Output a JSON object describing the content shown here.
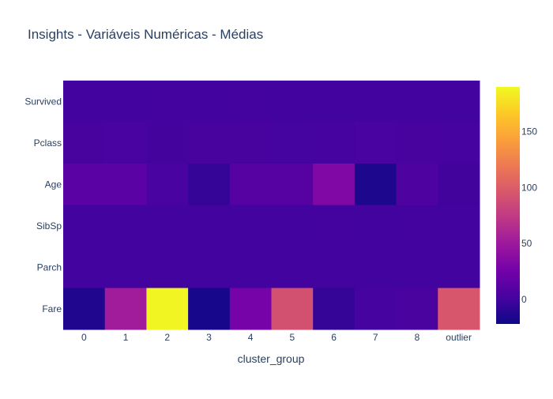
{
  "chart_data": {
    "type": "heatmap",
    "title": "Insights - Variáveis Numéricas - Médias",
    "xlabel": "cluster_group",
    "ylabel": "",
    "categories": [
      "0",
      "1",
      "2",
      "3",
      "4",
      "5",
      "6",
      "7",
      "8",
      "outlier"
    ],
    "rows": [
      "Survived",
      "Pclass",
      "Age",
      "SibSp",
      "Parch",
      "Fare"
    ],
    "values": [
      [
        0.2,
        0.1,
        0.6,
        0.5,
        0.6,
        0.5,
        0.3,
        0.3,
        0.3,
        0.4
      ],
      [
        2.5,
        3.0,
        1.0,
        2.5,
        2.8,
        1.2,
        2.3,
        3.0,
        2.6,
        1.6
      ],
      [
        12,
        12,
        3,
        -6,
        10,
        10,
        33,
        -16,
        6,
        0
      ],
      [
        0.3,
        0.5,
        0.4,
        0.3,
        0.5,
        0.4,
        0.6,
        0.2,
        0.9,
        0.5
      ],
      [
        0.3,
        0.4,
        0.4,
        0.3,
        0.4,
        0.4,
        0.5,
        0.2,
        0.4,
        0.4
      ],
      [
        -14,
        52,
        188,
        -18,
        27,
        91,
        -6,
        2,
        4,
        95
      ]
    ],
    "zmin": -22,
    "zmax": 190,
    "colorscale": [
      "#0d0887",
      "#46039f",
      "#7201a8",
      "#9c179e",
      "#bd3786",
      "#d8576b",
      "#ed7953",
      "#fb9f3a",
      "#fdca26",
      "#f0f921"
    ],
    "colorbar": {
      "ticks": [
        0,
        50,
        100,
        150
      ],
      "tick_labels": [
        "0",
        "50",
        "100",
        "150"
      ]
    },
    "grid": false,
    "legend": "colorbar-right"
  }
}
